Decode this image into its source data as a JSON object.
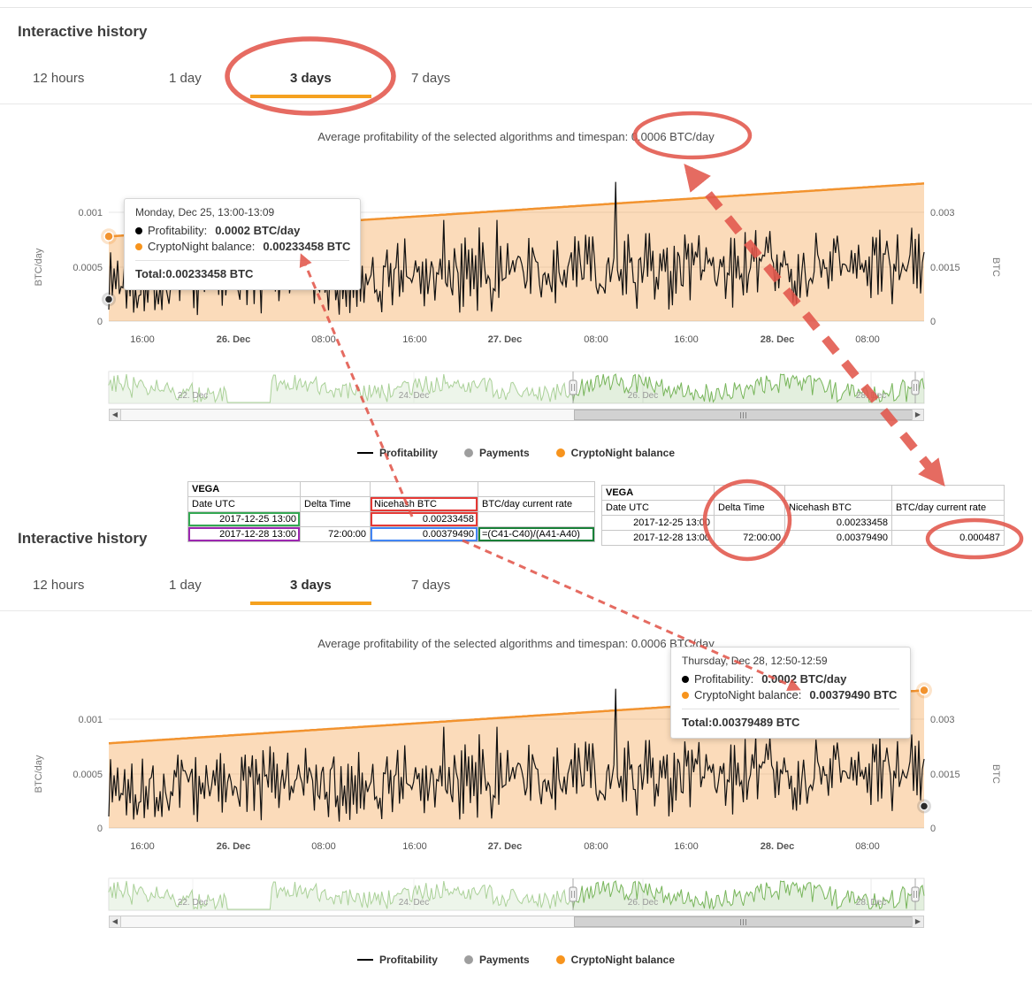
{
  "colors": {
    "accent_orange": "#f5a11f",
    "balance_line": "#f2932f",
    "balance_fill": "rgba(243,147,47,0.33)",
    "profitability_line": "#111111",
    "payments_gray": "#9e9e9e",
    "navigator_line": "#77b55a",
    "annotation_red": "#e2574c"
  },
  "tabs": {
    "items": [
      {
        "label": "12 hours"
      },
      {
        "label": "1 day"
      },
      {
        "label": "3 days"
      },
      {
        "label": "7 days"
      }
    ],
    "active": "3 days"
  },
  "panels": [
    {
      "title": "Interactive history",
      "subtitle_prefix": "Average profitability of the selected algorithms and timespan: ",
      "subtitle_value": "0.0006 BTC/day",
      "tooltip": {
        "title": "Monday, Dec 25, 13:00-13:09",
        "profit_label": "Profitability:",
        "profit_value": "0.0002 BTC/day",
        "balance_label": "CryptoNight balance:",
        "balance_value": "0.00233458 BTC",
        "total_label": "Total:",
        "total_value": "0.00233458 BTC"
      }
    },
    {
      "title": "Interactive history",
      "subtitle_prefix": "Average profitability of the selected algorithms and timespan: ",
      "subtitle_value": "0.0006 BTC/day",
      "tooltip": {
        "title": "Thursday, Dec 28, 12:50-12:59",
        "profit_label": "Profitability:",
        "profit_value": "0.0002 BTC/day",
        "balance_label": "CryptoNight balance:",
        "balance_value": "0.00379490 BTC",
        "total_label": "Total:",
        "total_value": "0.00379489 BTC"
      }
    }
  ],
  "axis": {
    "y_left_title": "BTC/day",
    "y_left_ticks": [
      "0.001",
      "0.0005",
      "0"
    ],
    "y_right_title": "BTC",
    "y_right_ticks": [
      "0.003",
      "0.0015",
      "0"
    ],
    "x_ticks": [
      "16:00",
      "26. Dec",
      "08:00",
      "16:00",
      "27. Dec",
      "08:00",
      "16:00",
      "28. Dec",
      "08:00"
    ],
    "x_bold": [
      1,
      4,
      7
    ]
  },
  "navigator": {
    "labels": [
      "22. Dec",
      "24. Dec",
      "26. Dec",
      "28. Dec"
    ]
  },
  "legend": {
    "items": [
      {
        "label": "Profitability",
        "swatch": "line",
        "color": "#000000"
      },
      {
        "label": "Payments",
        "swatch": "dot",
        "color": "#9e9e9e"
      },
      {
        "label": "CryptoNight balance",
        "swatch": "dot",
        "color": "#f7941d"
      }
    ]
  },
  "tables": [
    {
      "name": "VEGA",
      "columns": [
        "Date UTC",
        "Delta Time",
        "Nicehash BTC",
        "BTC/day current rate"
      ],
      "rows": [
        [
          "2017-12-25 13:00",
          "",
          "0.00233458",
          ""
        ],
        [
          "2017-12-28 13:00",
          "72:00:00",
          "0.00379490",
          "=(C41-C40)/(A41-A40)"
        ]
      ],
      "header_highlights": [
        {
          "col": 2,
          "color": "#e53935"
        }
      ],
      "highlights": [
        {
          "row": 0,
          "col": 0,
          "color": "#34a853"
        },
        {
          "row": 1,
          "col": 0,
          "color": "#9c27b0"
        },
        {
          "row": 0,
          "col": 2,
          "color": "#e53935"
        },
        {
          "row": 1,
          "col": 2,
          "color": "#4285f4"
        },
        {
          "row": 1,
          "col": 3,
          "color": "#188038"
        }
      ]
    },
    {
      "name": "VEGA",
      "columns": [
        "Date UTC",
        "Delta Time",
        "Nicehash BTC",
        "BTC/day current rate"
      ],
      "rows": [
        [
          "2017-12-25 13:00",
          "",
          "0.00233458",
          ""
        ],
        [
          "2017-12-28 13:00",
          "72:00:00",
          "0.00379490",
          "0.000487"
        ]
      ],
      "header_highlights": [],
      "highlights": []
    }
  ],
  "annotations": {
    "color": "#e2574c",
    "ovals": [
      "3 days tab",
      "average 0.0006 BTC/day",
      "Delta Time 72:00:00",
      "computed rate 0.000487"
    ],
    "arrows": [
      "average value to table rate column",
      "table 0.00233458 to first tooltip",
      "table 0.00379490 to second tooltip"
    ]
  },
  "chart_data": [
    {
      "type": "line",
      "title": "Average profitability of the selected algorithms and timespan: 0.0006 BTC/day",
      "x_range": [
        "2017-12-25 13:00",
        "2017-12-28 13:00"
      ],
      "x_ticks": [
        "16:00",
        "26. Dec",
        "08:00",
        "16:00",
        "27. Dec",
        "08:00",
        "16:00",
        "28. Dec",
        "08:00"
      ],
      "y_left": {
        "title": "BTC/day",
        "ticks": [
          0,
          0.0005,
          0.001
        ]
      },
      "y_right": {
        "title": "BTC",
        "ticks": [
          0,
          0.0015,
          0.003
        ]
      },
      "legend_position": "bottom",
      "series": [
        {
          "name": "Profitability",
          "type": "line",
          "axis": "left",
          "style": "high-frequency noisy line",
          "approx_range": [
            0.0001,
            0.0009
          ],
          "max_spike": 0.0013,
          "average": 0.0006,
          "hover": {
            "time": "Dec 25, 13:00-13:09",
            "value": 0.0002
          }
        },
        {
          "name": "CryptoNight balance",
          "type": "area",
          "axis": "right",
          "start": 0.00233458,
          "end": 0.0037949
        },
        {
          "name": "Payments",
          "type": "scatter",
          "axis": "right",
          "points": []
        }
      ],
      "navigator": {
        "x_ticks": [
          "22. Dec",
          "24. Dec",
          "26. Dec",
          "28. Dec"
        ],
        "flat_segment": "around 22-23 Dec"
      }
    },
    {
      "type": "line",
      "title": "Average profitability of the selected algorithms and timespan: 0.0006 BTC/day",
      "x_range": [
        "2017-12-25 13:00",
        "2017-12-28 13:00"
      ],
      "x_ticks": [
        "16:00",
        "26. Dec",
        "08:00",
        "16:00",
        "27. Dec",
        "08:00",
        "16:00",
        "28. Dec",
        "08:00"
      ],
      "y_left": {
        "title": "BTC/day",
        "ticks": [
          0,
          0.0005,
          0.001
        ]
      },
      "y_right": {
        "title": "BTC",
        "ticks": [
          0,
          0.0015,
          0.003
        ]
      },
      "legend_position": "bottom",
      "series": [
        {
          "name": "Profitability",
          "type": "line",
          "axis": "left",
          "style": "high-frequency noisy line",
          "approx_range": [
            0.0001,
            0.0009
          ],
          "max_spike": 0.0013,
          "average": 0.0006,
          "hover": {
            "time": "Dec 28, 12:50-12:59",
            "value": 0.0002
          }
        },
        {
          "name": "CryptoNight balance",
          "type": "area",
          "axis": "right",
          "start": 0.00233458,
          "end": 0.0037949
        },
        {
          "name": "Payments",
          "type": "scatter",
          "axis": "right",
          "points": []
        }
      ],
      "navigator": {
        "x_ticks": [
          "22. Dec",
          "24. Dec",
          "26. Dec",
          "28. Dec"
        ],
        "flat_segment": "around 22-23 Dec"
      }
    }
  ]
}
